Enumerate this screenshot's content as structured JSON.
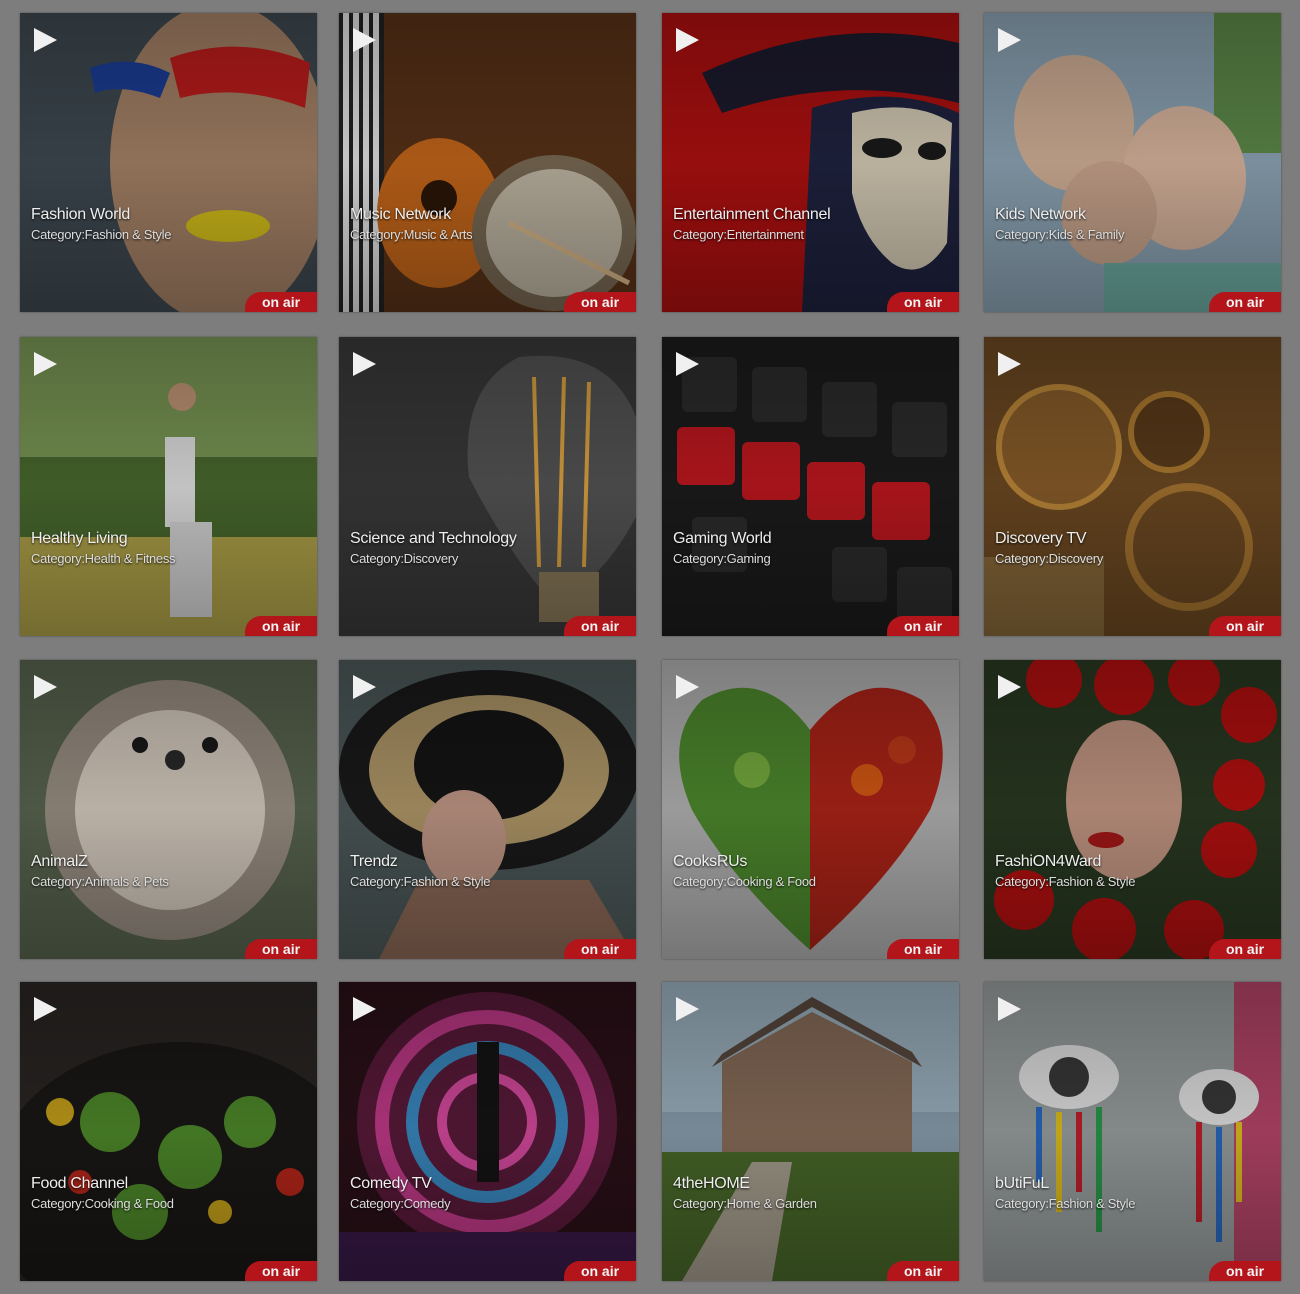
{
  "theme": {
    "page_background": "#7d7d7d",
    "badge_color": "#b3151b"
  },
  "channels": [
    {
      "title": "Fashion World",
      "category": "Category:Fashion & Style",
      "status": "on air",
      "image": "woman-with-red-eye-makeup"
    },
    {
      "title": "Music Network",
      "category": "Category:Music & Arts",
      "status": "on air",
      "image": "guitars-and-drum"
    },
    {
      "title": "Entertainment Channel",
      "category": "Category:Entertainment",
      "status": "on air",
      "image": "venetian-mask"
    },
    {
      "title": "Kids Network",
      "category": "Category:Kids & Family",
      "status": "on air",
      "image": "smiling-children"
    },
    {
      "title": "Healthy Living",
      "category": "Category:Health & Fitness",
      "status": "on air",
      "image": "woman-stretching-outdoors"
    },
    {
      "title": "Science and Technology",
      "category": "Category:Discovery",
      "status": "on air",
      "image": "light-bulb"
    },
    {
      "title": "Gaming World",
      "category": "Category:Gaming",
      "status": "on air",
      "image": "game-keyboard"
    },
    {
      "title": "Discovery TV",
      "category": "Category:Discovery",
      "status": "on air",
      "image": "compass-and-map"
    },
    {
      "title": "AnimalZ",
      "category": "Category:Animals & Pets",
      "status": "on air",
      "image": "hedgehog"
    },
    {
      "title": "Trendz",
      "category": "Category:Fashion & Style",
      "status": "on air",
      "image": "woman-in-hat"
    },
    {
      "title": "CooksRUs",
      "category": "Category:Cooking & Food",
      "status": "on air",
      "image": "vegetable-heart"
    },
    {
      "title": "FashiON4Ward",
      "category": "Category:Fashion & Style",
      "status": "on air",
      "image": "woman-with-roses"
    },
    {
      "title": "Food Channel",
      "category": "Category:Cooking & Food",
      "status": "on air",
      "image": "wok-vegetables"
    },
    {
      "title": "Comedy TV",
      "category": "Category:Comedy",
      "status": "on air",
      "image": "performer-on-stage"
    },
    {
      "title": "4theHOME",
      "category": "Category:Home & Garden",
      "status": "on air",
      "image": "house-with-garden"
    },
    {
      "title": "bUtiFuL",
      "category": "Category:Fashion & Style",
      "status": "on air",
      "image": "painted-eyes"
    }
  ]
}
